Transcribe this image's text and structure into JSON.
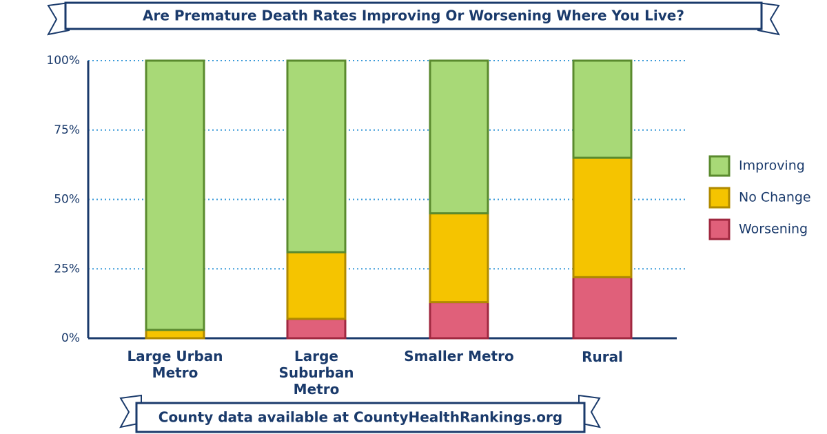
{
  "chart_data": {
    "type": "stacked_bar",
    "title": "Are Premature Death Rates Improving Or Worsening Where You Live?",
    "annotation": "County data available at CountyHealthRankings.org",
    "categories": [
      "Large Urban Metro",
      "Large Suburban Metro",
      "Smaller Metro",
      "Rural"
    ],
    "series": [
      {
        "name": "Improving",
        "color": "#a8d977",
        "values": [
          97,
          69,
          55,
          35
        ]
      },
      {
        "name": "No Change",
        "color": "#f5c400",
        "values": [
          3,
          24,
          32,
          43
        ]
      },
      {
        "name": "Worsening",
        "color": "#e0607a",
        "values": [
          0,
          7,
          13,
          22
        ]
      }
    ],
    "ylim": [
      0,
      100
    ],
    "yticks": [
      {
        "value": 0,
        "label": "0%"
      },
      {
        "value": 25,
        "label": "25%"
      },
      {
        "value": 50,
        "label": "50%"
      },
      {
        "value": 75,
        "label": "75%"
      },
      {
        "value": 100,
        "label": "100%"
      }
    ],
    "grid": true,
    "legend": "right"
  }
}
